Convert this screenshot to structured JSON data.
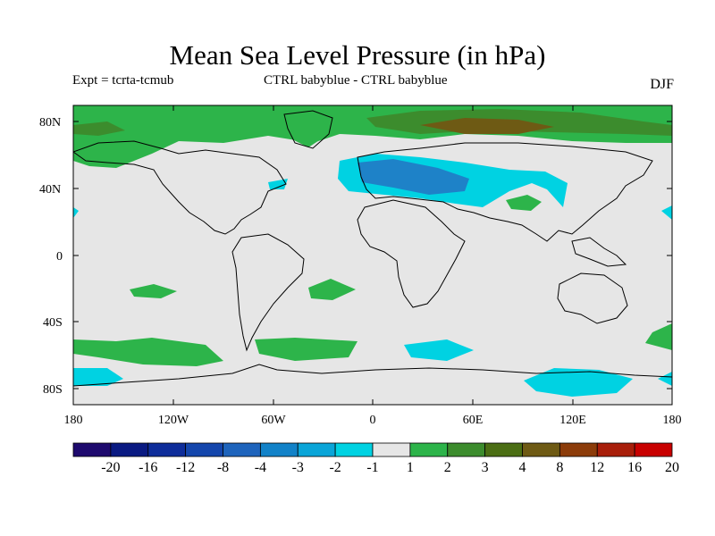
{
  "title": "Mean Sea Level Pressure (in hPa)",
  "experiment": "Expt = tcrta-tcmub",
  "comparison": "CTRL babyblue - CTRL babyblue",
  "season": "DJF",
  "lat_ticks": [
    "80N",
    "40N",
    "0",
    "40S",
    "80S"
  ],
  "lon_ticks": [
    "180",
    "120W",
    "60W",
    "0",
    "60E",
    "120E",
    "180"
  ],
  "colorbar": {
    "labels": [
      "-20",
      "-16",
      "-12",
      "-8",
      "-4",
      "-3",
      "-2",
      "-1",
      "1",
      "2",
      "3",
      "4",
      "8",
      "12",
      "16",
      "20"
    ],
    "colors": [
      "#1e0a6e",
      "#0a1a82",
      "#0e2d9a",
      "#1446ac",
      "#1e64bc",
      "#1282c8",
      "#0aa5d8",
      "#00d2e2",
      "#e6e6e6",
      "#2db44a",
      "#3c8c2d",
      "#4b6e14",
      "#6e5a14",
      "#8c3c0a",
      "#a81e0a",
      "#c80000"
    ]
  },
  "colors": {
    "neutral": "#e6e6e6",
    "cyan": "#00d2e2",
    "blue": "#1e82c8",
    "green": "#2db44a",
    "dark_green": "#3c8c2d",
    "olive": "#6e5a14"
  }
}
